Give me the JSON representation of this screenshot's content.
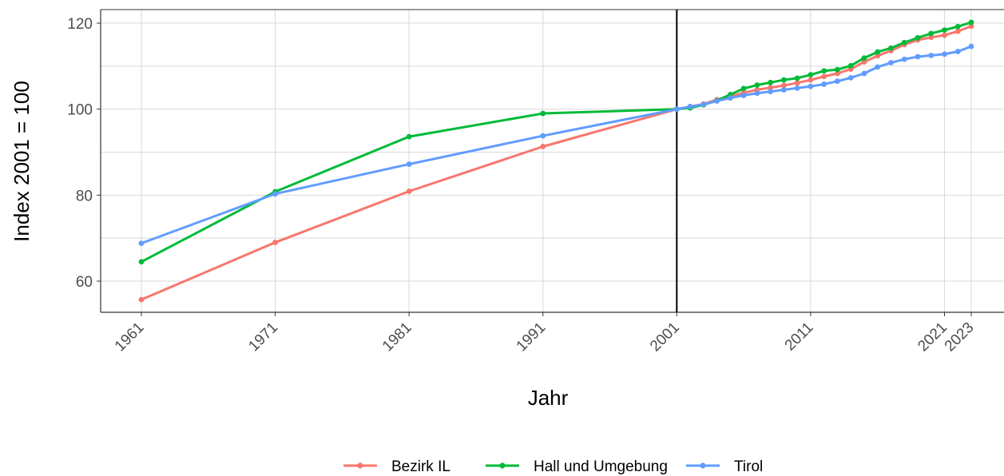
{
  "chart_data": {
    "type": "line",
    "title": "",
    "xlabel": "Jahr",
    "ylabel": "Index 2001 = 100",
    "xlim": [
      1961,
      2023
    ],
    "ylim": [
      53,
      123
    ],
    "x_ticks": [
      1961,
      1971,
      1981,
      1991,
      2001,
      2011,
      2021,
      2023
    ],
    "y_ticks": [
      60,
      80,
      100,
      120
    ],
    "grid": true,
    "legend_position": "bottom",
    "reference_line_x": 2001,
    "series": [
      {
        "name": "Bezirk IL",
        "color": "#F8766D",
        "points": [
          [
            1961,
            55.7
          ],
          [
            1971,
            69.0
          ],
          [
            1981,
            80.9
          ],
          [
            1991,
            91.3
          ],
          [
            2001,
            100.0
          ],
          [
            2002,
            100.6
          ],
          [
            2003,
            101.2
          ],
          [
            2004,
            102.2
          ],
          [
            2005,
            103.0
          ],
          [
            2006,
            103.8
          ],
          [
            2007,
            104.5
          ],
          [
            2008,
            105.0
          ],
          [
            2009,
            105.5
          ],
          [
            2010,
            106.1
          ],
          [
            2011,
            106.8
          ],
          [
            2012,
            107.6
          ],
          [
            2013,
            108.3
          ],
          [
            2014,
            109.3
          ],
          [
            2015,
            111.0
          ],
          [
            2016,
            112.4
          ],
          [
            2017,
            113.6
          ],
          [
            2018,
            115.0
          ],
          [
            2019,
            116.1
          ],
          [
            2020,
            116.7
          ],
          [
            2021,
            117.2
          ],
          [
            2022,
            118.1
          ],
          [
            2023,
            119.3
          ]
        ]
      },
      {
        "name": "Hall und Umgebung",
        "color": "#00BA38",
        "points": [
          [
            1961,
            64.5
          ],
          [
            1971,
            80.8
          ],
          [
            1981,
            93.6
          ],
          [
            1991,
            99.0
          ],
          [
            2001,
            100.0
          ],
          [
            2002,
            100.3
          ],
          [
            2003,
            101.0
          ],
          [
            2004,
            102.0
          ],
          [
            2005,
            103.4
          ],
          [
            2006,
            104.8
          ],
          [
            2007,
            105.6
          ],
          [
            2008,
            106.2
          ],
          [
            2009,
            106.8
          ],
          [
            2010,
            107.2
          ],
          [
            2011,
            108.0
          ],
          [
            2012,
            108.9
          ],
          [
            2013,
            109.2
          ],
          [
            2014,
            110.1
          ],
          [
            2015,
            111.9
          ],
          [
            2016,
            113.3
          ],
          [
            2017,
            114.2
          ],
          [
            2018,
            115.5
          ],
          [
            2019,
            116.6
          ],
          [
            2020,
            117.6
          ],
          [
            2021,
            118.4
          ],
          [
            2022,
            119.2
          ],
          [
            2023,
            120.2
          ]
        ]
      },
      {
        "name": "Tirol",
        "color": "#619CFF",
        "points": [
          [
            1961,
            68.8
          ],
          [
            1971,
            80.3
          ],
          [
            1981,
            87.2
          ],
          [
            1991,
            93.8
          ],
          [
            2001,
            100.0
          ],
          [
            2002,
            100.6
          ],
          [
            2003,
            101.1
          ],
          [
            2004,
            101.9
          ],
          [
            2005,
            102.6
          ],
          [
            2006,
            103.2
          ],
          [
            2007,
            103.7
          ],
          [
            2008,
            104.1
          ],
          [
            2009,
            104.5
          ],
          [
            2010,
            104.9
          ],
          [
            2011,
            105.3
          ],
          [
            2012,
            105.8
          ],
          [
            2013,
            106.5
          ],
          [
            2014,
            107.3
          ],
          [
            2015,
            108.3
          ],
          [
            2016,
            109.8
          ],
          [
            2017,
            110.8
          ],
          [
            2018,
            111.6
          ],
          [
            2019,
            112.2
          ],
          [
            2020,
            112.5
          ],
          [
            2021,
            112.8
          ],
          [
            2022,
            113.4
          ],
          [
            2023,
            114.6
          ]
        ]
      }
    ]
  }
}
